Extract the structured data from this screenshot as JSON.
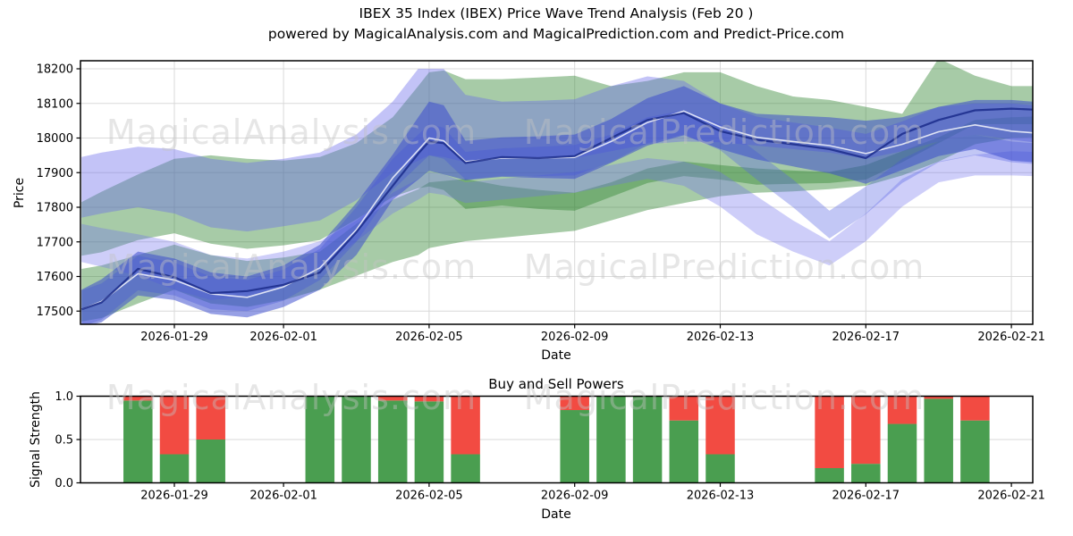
{
  "page": {
    "title_line1": "IBEX 35 Index (IBEX) Price Wave Trend Analysis (Feb 20 )",
    "title_line2": "powered by MagicalAnalysis.com and MagicalPrediction.com and Predict-Price.com"
  },
  "watermark": {
    "left": "MagicalAnalysis.com",
    "right": "MagicalPrediction.com"
  },
  "chart_data": [
    {
      "type": "area",
      "title": "IBEX 35 Index (IBEX) Price Wave Trend Analysis (Feb 20 )",
      "subtitle": "powered by MagicalAnalysis.com and MagicalPrediction.com and Predict-Price.com",
      "xlabel": "Date",
      "ylabel": "Price",
      "ylim": [
        17450,
        18225
      ],
      "grid": true,
      "y_ticks": [
        17500,
        17600,
        17700,
        17800,
        17900,
        18000,
        18100,
        18200
      ],
      "x_tick_days": [
        3,
        6,
        10,
        14,
        18,
        22,
        26
      ],
      "x_tick_labels": [
        "2026-01-29",
        "2026-02-01",
        "2026-02-05",
        "2026-02-09",
        "2026-02-13",
        "2026-02-17",
        "2026-02-21"
      ],
      "x_days": [
        0.45,
        1,
        2,
        3,
        4,
        5,
        6,
        7,
        8,
        9,
        9.7,
        10,
        10.4,
        11,
        12,
        13,
        14,
        15,
        16,
        17,
        18,
        19,
        20,
        21,
        22,
        23,
        24,
        25,
        26,
        26.6
      ],
      "series": [
        {
          "name": "green-band-upper",
          "kind": "band",
          "color": "rgba(45,130,45,0.42)",
          "upper": [
            17815,
            17845,
            17895,
            17940,
            17950,
            17940,
            17935,
            17945,
            17985,
            18060,
            18150,
            18190,
            18195,
            18170,
            18170,
            18175,
            18180,
            18150,
            18165,
            18190,
            18190,
            18150,
            18120,
            18110,
            18090,
            18070,
            18230,
            18180,
            18150,
            18150
          ],
          "lower": [
            17660,
            17670,
            17705,
            17725,
            17695,
            17680,
            17690,
            17705,
            17765,
            17830,
            17855,
            17860,
            17850,
            17795,
            17805,
            17795,
            17790,
            17830,
            17870,
            17890,
            17880,
            17865,
            17868,
            17870,
            17880,
            17930,
            17985,
            18040,
            18040,
            18040
          ]
        },
        {
          "name": "green-band-lower",
          "kind": "band",
          "color": "rgba(45,130,45,0.42)",
          "upper": [
            17622,
            17632,
            17662,
            17692,
            17662,
            17645,
            17655,
            17672,
            17752,
            17822,
            17852,
            17872,
            17876,
            17882,
            17862,
            17850,
            17842,
            17872,
            17912,
            17932,
            17922,
            17912,
            17906,
            17902,
            17922,
            17962,
            18002,
            18052,
            18060,
            18062
          ],
          "lower": [
            17470,
            17480,
            17522,
            17562,
            17522,
            17512,
            17532,
            17562,
            17602,
            17642,
            17662,
            17682,
            17690,
            17702,
            17712,
            17722,
            17732,
            17762,
            17792,
            17812,
            17832,
            17842,
            17846,
            17852,
            17862,
            17892,
            17932,
            17982,
            18000,
            18002
          ]
        },
        {
          "name": "wave-band-wide",
          "kind": "band",
          "color": "rgba(105,105,235,0.40)",
          "upper": [
            17945,
            17958,
            17975,
            17968,
            17940,
            17928,
            17940,
            17958,
            18010,
            18105,
            18200,
            18200,
            18200,
            18125,
            18105,
            18108,
            18112,
            18150,
            18178,
            18165,
            18100,
            18062,
            18045,
            18030,
            18012,
            18048,
            18090,
            18100,
            18100,
            18095
          ],
          "lower": [
            17770,
            17782,
            17800,
            17782,
            17742,
            17730,
            17745,
            17762,
            17820,
            17900,
            17935,
            17950,
            17945,
            17930,
            17940,
            17940,
            17942,
            17962,
            17982,
            17990,
            17988,
            17978,
            17968,
            17958,
            17940,
            17962,
            17990,
            18010,
            17995,
            17988
          ]
        },
        {
          "name": "wave-band-low",
          "kind": "band",
          "color": "rgba(110,110,238,0.34)",
          "upper": [
            17752,
            17740,
            17722,
            17700,
            17662,
            17652,
            17672,
            17702,
            17762,
            17842,
            17882,
            17902,
            17895,
            17872,
            17882,
            17892,
            17902,
            17922,
            17942,
            17932,
            17902,
            17832,
            17762,
            17702,
            17782,
            17882,
            17932,
            17952,
            17962,
            17960
          ],
          "lower": [
            17642,
            17628,
            17602,
            17562,
            17532,
            17542,
            17572,
            17622,
            17702,
            17782,
            17822,
            17842,
            17836,
            17812,
            17822,
            17832,
            17842,
            17862,
            17882,
            17862,
            17802,
            17722,
            17672,
            17632,
            17702,
            17802,
            17872,
            17892,
            17892,
            17890
          ]
        },
        {
          "name": "wave-band-cross",
          "kind": "band",
          "color": "rgba(85,100,228,0.36)",
          "upper": [
            17560,
            17580,
            17660,
            17640,
            17600,
            17590,
            17620,
            17680,
            17800,
            17940,
            18010,
            18040,
            18030,
            17960,
            17970,
            17975,
            17980,
            18010,
            18060,
            18080,
            18040,
            17960,
            17880,
            17790,
            17860,
            17940,
            17990,
            18010,
            17990,
            17985
          ],
          "lower": [
            17455,
            17475,
            17560,
            17545,
            17505,
            17500,
            17530,
            17590,
            17700,
            17850,
            17920,
            17950,
            17940,
            17880,
            17890,
            17890,
            17892,
            17930,
            17985,
            18010,
            17965,
            17880,
            17800,
            17710,
            17780,
            17870,
            17930,
            17950,
            17930,
            17925
          ]
        },
        {
          "name": "wave-band-core",
          "kind": "band",
          "color": "rgba(55,72,205,0.52)",
          "upper": [
            17562,
            17592,
            17672,
            17652,
            17612,
            17600,
            17632,
            17692,
            17812,
            17952,
            18060,
            18105,
            18095,
            17992,
            18002,
            18005,
            18010,
            18055,
            18115,
            18150,
            18100,
            18070,
            18065,
            18060,
            18050,
            18060,
            18090,
            18110,
            18110,
            18105
          ],
          "lower": [
            17452,
            17468,
            17545,
            17532,
            17492,
            17482,
            17512,
            17562,
            17662,
            17822,
            17880,
            17905,
            17895,
            17878,
            17888,
            17885,
            17882,
            17928,
            17978,
            18008,
            17968,
            17938,
            17918,
            17898,
            17868,
            17908,
            17948,
            17968,
            17935,
            17930
          ]
        },
        {
          "name": "forecast-median-line",
          "kind": "line",
          "color": "rgba(255,255,255,0.8)",
          "width": 1.6,
          "values": [
            17505,
            17528,
            17608,
            17590,
            17550,
            17540,
            17570,
            17625,
            17735,
            17885,
            17965,
            18000,
            17992,
            17932,
            17942,
            17942,
            17944,
            17990,
            18045,
            18078,
            18032,
            18002,
            17990,
            17978,
            17955,
            17982,
            18018,
            18038,
            18020,
            18015
          ]
        },
        {
          "name": "price-line",
          "kind": "line",
          "color": "rgba(28,45,140,0.88)",
          "width": 2.2,
          "values": [
            17505,
            17525,
            17622,
            17598,
            17552,
            17558,
            17576,
            17612,
            17728,
            17862,
            17955,
            17990,
            17985,
            17928,
            17945,
            17942,
            17948,
            18000,
            18052,
            18072,
            18020,
            17995,
            17982,
            17968,
            17942,
            18012,
            18052,
            18080,
            18085,
            18082
          ]
        }
      ]
    },
    {
      "type": "bar",
      "title": "Buy and Sell Powers",
      "xlabel": "Date",
      "ylabel": "Signal Strength",
      "ylim": [
        0,
        1
      ],
      "grid": true,
      "y_ticks": [
        0,
        0.5,
        1
      ],
      "y_tick_labels": [
        "0.0",
        "0.5",
        "1.0"
      ],
      "x_tick_days": [
        3,
        6,
        10,
        14,
        18,
        22,
        26
      ],
      "x_tick_labels": [
        "2026-01-29",
        "2026-02-01",
        "2026-02-05",
        "2026-02-09",
        "2026-02-13",
        "2026-02-17",
        "2026-02-21"
      ],
      "colors": {
        "buy": "#4a9e50",
        "sell": "#f24b42"
      },
      "bars": [
        {
          "date": "2026-01-28",
          "day": 2,
          "buy": 0.95,
          "sell": 0.05
        },
        {
          "date": "2026-01-29",
          "day": 3,
          "buy": 0.33,
          "sell": 0.67
        },
        {
          "date": "2026-01-30",
          "day": 4,
          "buy": 0.5,
          "sell": 0.5
        },
        {
          "date": "2026-02-02",
          "day": 7,
          "buy": 1.0,
          "sell": 0.0
        },
        {
          "date": "2026-02-03",
          "day": 8,
          "buy": 1.0,
          "sell": 0.0
        },
        {
          "date": "2026-02-04",
          "day": 9,
          "buy": 0.95,
          "sell": 0.05
        },
        {
          "date": "2026-02-05",
          "day": 10,
          "buy": 0.94,
          "sell": 0.06
        },
        {
          "date": "2026-02-06",
          "day": 11,
          "buy": 0.33,
          "sell": 0.67
        },
        {
          "date": "2026-02-09",
          "day": 14,
          "buy": 0.84,
          "sell": 0.16
        },
        {
          "date": "2026-02-10",
          "day": 15,
          "buy": 1.0,
          "sell": 0.0
        },
        {
          "date": "2026-02-11",
          "day": 16,
          "buy": 1.0,
          "sell": 0.0
        },
        {
          "date": "2026-02-12",
          "day": 17,
          "buy": 0.72,
          "sell": 0.28
        },
        {
          "date": "2026-02-13",
          "day": 18,
          "buy": 0.33,
          "sell": 0.67
        },
        {
          "date": "2026-02-16",
          "day": 21,
          "buy": 0.17,
          "sell": 0.83
        },
        {
          "date": "2026-02-17",
          "day": 22,
          "buy": 0.22,
          "sell": 0.78
        },
        {
          "date": "2026-02-18",
          "day": 23,
          "buy": 0.68,
          "sell": 0.32
        },
        {
          "date": "2026-02-19",
          "day": 24,
          "buy": 0.97,
          "sell": 0.03
        },
        {
          "date": "2026-02-20",
          "day": 25,
          "buy": 0.72,
          "sell": 0.28
        }
      ]
    }
  ]
}
